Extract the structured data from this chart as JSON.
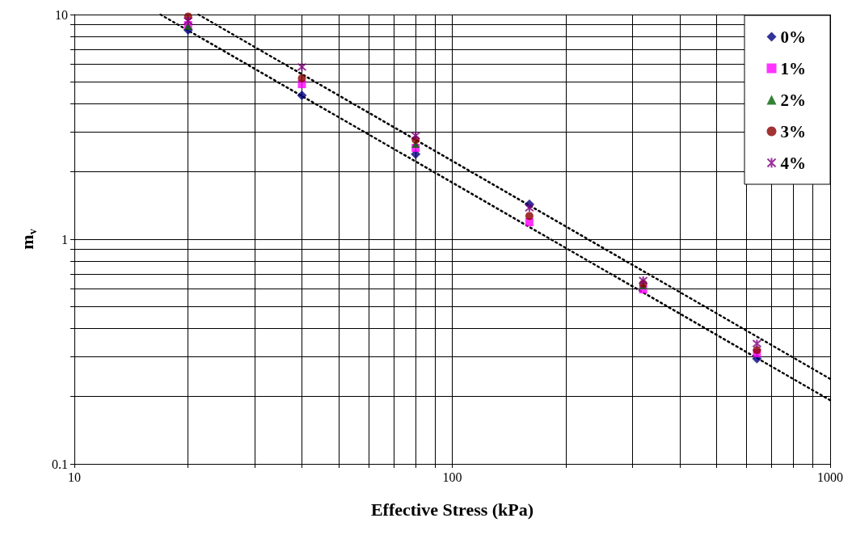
{
  "chart_data": {
    "type": "scatter",
    "xlabel": "Effective Stress (kPa)",
    "ylabel": "m$_{v}$",
    "log": "xy",
    "grid": true,
    "legend": "top right",
    "x": [
      20,
      40,
      80,
      160,
      320,
      640
    ],
    "xlim": [
      10,
      1000
    ],
    "ylim": [
      0.1,
      10
    ],
    "xticks": [
      10,
      {
        "value": 20,
        "label": null
      },
      {
        "value": 30,
        "label": null
      },
      {
        "value": 40,
        "label": null
      },
      {
        "value": 50,
        "label": null
      },
      {
        "value": 60,
        "label": null
      },
      {
        "value": 70,
        "label": null
      },
      {
        "value": 80,
        "label": null
      },
      {
        "value": 90,
        "label": null
      },
      100,
      {
        "value": 200,
        "label": null
      },
      {
        "value": 300,
        "label": null
      },
      {
        "value": 400,
        "label": null
      },
      {
        "value": 500,
        "label": null
      },
      {
        "value": 600,
        "label": null
      },
      {
        "value": 700,
        "label": null
      },
      {
        "value": 800,
        "label": null
      },
      {
        "value": 900,
        "label": null
      },
      1000
    ],
    "yticks": [
      0.1,
      {
        "value": 0.2,
        "label": null
      },
      {
        "value": 0.3,
        "label": null
      },
      {
        "value": 0.4,
        "label": null
      },
      {
        "value": 0.5,
        "label": null
      },
      {
        "value": 0.6,
        "label": null
      },
      {
        "value": 0.7,
        "label": null
      },
      {
        "value": 0.8,
        "label": null
      },
      {
        "value": 0.9,
        "label": null
      },
      1,
      {
        "value": 2,
        "label": null
      },
      {
        "value": 3,
        "label": null
      },
      {
        "value": 4,
        "label": null
      },
      {
        "value": 5,
        "label": null
      },
      {
        "value": 6,
        "label": null
      },
      {
        "value": 7,
        "label": null
      },
      {
        "value": 8,
        "label": null
      },
      {
        "value": 9,
        "label": null
      },
      10
    ],
    "series": [
      {
        "name": "0%",
        "color": "#000080",
        "marker": "diamond",
        "values": [
          8.55,
          4.37,
          2.39,
          1.43,
          null,
          0.294
        ]
      },
      {
        "name": "1%",
        "color": "#ff00ff",
        "marker": "square",
        "values": [
          8.98,
          4.9,
          2.55,
          1.19,
          0.598,
          0.311
        ]
      },
      {
        "name": "2%",
        "color": "#006400",
        "marker": "triangle",
        "values": [
          8.9,
          null,
          2.66,
          null,
          0.624,
          null
        ]
      },
      {
        "name": "3%",
        "color": "#8b0000",
        "marker": "circle",
        "values": [
          9.8,
          5.2,
          2.77,
          1.27,
          0.634,
          0.321
        ]
      },
      {
        "name": "4%",
        "color": "#800080",
        "marker": "cross",
        "values": [
          9.36,
          5.84,
          2.89,
          1.38,
          0.655,
          0.343
        ]
      },
      {
        "type": "line",
        "color": "#000000",
        "line_style": "dotted",
        "marker": "none",
        "x": [
          16.9,
          1000
        ],
        "values": [
          10,
          0.192
        ]
      },
      {
        "type": "line",
        "color": "#000000",
        "line_style": "dotted",
        "marker": "none",
        "x": [
          21.3,
          1000
        ],
        "values": [
          10,
          0.239
        ]
      }
    ]
  }
}
